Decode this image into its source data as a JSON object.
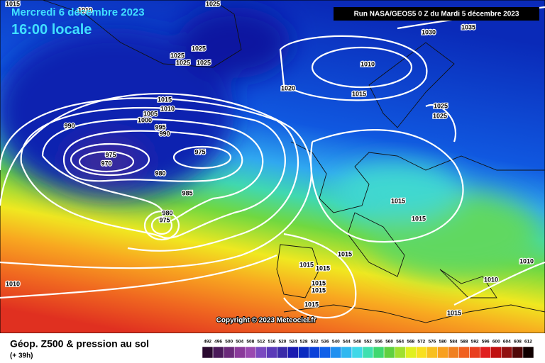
{
  "header": {
    "date": "Mercredi 6 décembre 2023",
    "time": "16:00 locale",
    "run": "Run NASA/GEOS5 0 Z du Mardi 5 décembre 2023"
  },
  "isobar_labels": [
    "1015",
    "1010",
    "1025",
    "1030",
    "1035",
    "1025",
    "1025",
    "1025",
    "1025",
    "1010",
    "1020",
    "1015",
    "1015",
    "1010",
    "1005",
    "1000",
    "995",
    "990",
    "990",
    "975",
    "970",
    "975",
    "980",
    "985",
    "980",
    "975",
    "1025",
    "1025",
    "1015",
    "1015",
    "1015",
    "1015",
    "1015",
    "1015",
    "1015",
    "1010",
    "1010",
    "1010",
    "1015",
    "1015"
  ],
  "copyright": "Copyright © 2023 Meteociel.fr",
  "legend": {
    "title": "Géop. Z500 & pression au sol",
    "lead": "(+ 39h)",
    "scale": [
      {
        "label": "492",
        "color": "#2a0a30"
      },
      {
        "label": "496",
        "color": "#4a1a5a"
      },
      {
        "label": "500",
        "color": "#6a2a7a"
      },
      {
        "label": "504",
        "color": "#8a3a9a"
      },
      {
        "label": "508",
        "color": "#9a4ab0"
      },
      {
        "label": "512",
        "color": "#7a4ac0"
      },
      {
        "label": "516",
        "color": "#5a3ab8"
      },
      {
        "label": "520",
        "color": "#3a2aa8"
      },
      {
        "label": "524",
        "color": "#1a1ab0"
      },
      {
        "label": "528",
        "color": "#0a2ac0"
      },
      {
        "label": "532",
        "color": "#0a40d8"
      },
      {
        "label": "536",
        "color": "#1060e8"
      },
      {
        "label": "540",
        "color": "#2090f0"
      },
      {
        "label": "544",
        "color": "#30b8f0"
      },
      {
        "label": "548",
        "color": "#40d8e8"
      },
      {
        "label": "552",
        "color": "#40e0b0"
      },
      {
        "label": "556",
        "color": "#40d870"
      },
      {
        "label": "560",
        "color": "#60d040"
      },
      {
        "label": "564",
        "color": "#a0e030"
      },
      {
        "label": "568",
        "color": "#e0f020"
      },
      {
        "label": "572",
        "color": "#f8e020"
      },
      {
        "label": "576",
        "color": "#f8c020"
      },
      {
        "label": "580",
        "color": "#f8a020"
      },
      {
        "label": "584",
        "color": "#f08020"
      },
      {
        "label": "588",
        "color": "#f06020"
      },
      {
        "label": "592",
        "color": "#e84020"
      },
      {
        "label": "596",
        "color": "#e02020"
      },
      {
        "label": "600",
        "color": "#c01010"
      },
      {
        "label": "604",
        "color": "#901010"
      },
      {
        "label": "608",
        "color": "#500808"
      },
      {
        "label": "612",
        "color": "#100000"
      }
    ]
  }
}
